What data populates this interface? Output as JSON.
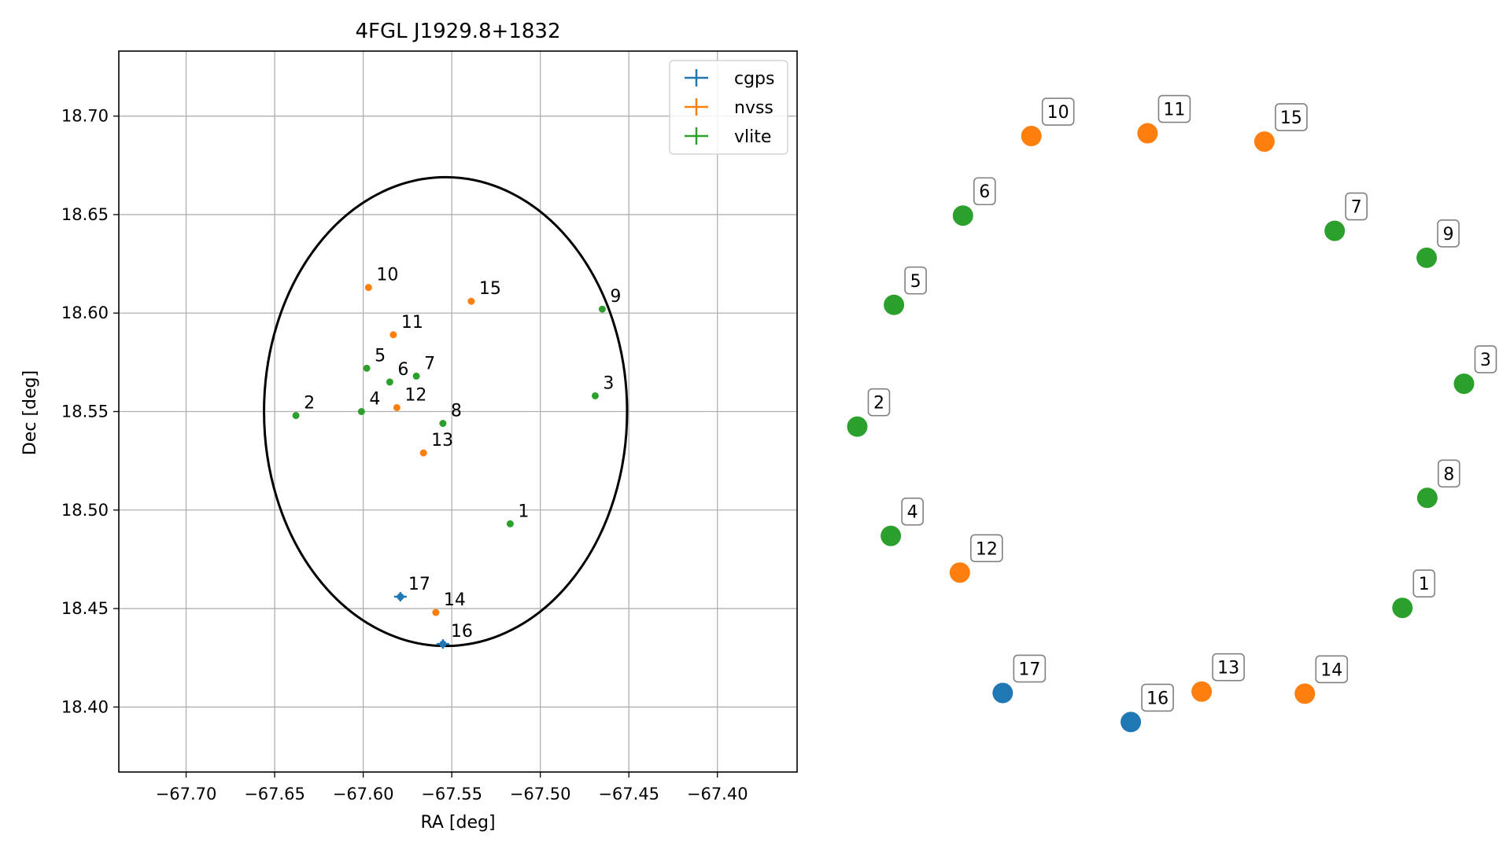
{
  "chart_data": [
    {
      "type": "scatter",
      "title": "4FGL J1929.8+1832",
      "xlabel": "RA [deg]",
      "ylabel": "Dec [deg]",
      "xlim": [
        -67.738,
        -67.355
      ],
      "ylim": [
        18.367,
        18.733
      ],
      "xticks": [
        -67.7,
        -67.65,
        -67.6,
        -67.55,
        -67.5,
        -67.45,
        -67.4
      ],
      "xtick_labels": [
        "−67.70",
        "−67.65",
        "−67.60",
        "−67.55",
        "−67.50",
        "−67.45",
        "−67.40"
      ],
      "yticks": [
        18.4,
        18.45,
        18.5,
        18.55,
        18.6,
        18.65,
        18.7
      ],
      "ytick_labels": [
        "18.40",
        "18.45",
        "18.50",
        "18.55",
        "18.60",
        "18.65",
        "18.70"
      ],
      "grid": true,
      "legend": {
        "placement": "top-right",
        "entries": [
          {
            "name": "cgps",
            "color": "#1f77b4"
          },
          {
            "name": "nvss",
            "color": "#ff7f0e"
          },
          {
            "name": "vlite",
            "color": "#2ca02c"
          }
        ]
      },
      "ellipse": {
        "center": [
          -67.5535,
          18.55
        ],
        "ra_semi_axis": 0.1025,
        "dec_semi_axis": 0.119,
        "color": "#000000"
      },
      "series": [
        {
          "name": "cgps",
          "color": "#1f77b4",
          "points": [
            {
              "label": "16",
              "x": -67.555,
              "y": 18.432
            },
            {
              "label": "17",
              "x": -67.579,
              "y": 18.456
            }
          ]
        },
        {
          "name": "nvss",
          "color": "#ff7f0e",
          "points": [
            {
              "label": "10",
              "x": -67.597,
              "y": 18.613
            },
            {
              "label": "11",
              "x": -67.583,
              "y": 18.589
            },
            {
              "label": "12",
              "x": -67.581,
              "y": 18.552
            },
            {
              "label": "13",
              "x": -67.566,
              "y": 18.529
            },
            {
              "label": "14",
              "x": -67.559,
              "y": 18.448
            },
            {
              "label": "15",
              "x": -67.539,
              "y": 18.606
            }
          ]
        },
        {
          "name": "vlite",
          "color": "#2ca02c",
          "points": [
            {
              "label": "1",
              "x": -67.517,
              "y": 18.493
            },
            {
              "label": "2",
              "x": -67.638,
              "y": 18.548
            },
            {
              "label": "3",
              "x": -67.469,
              "y": 18.558
            },
            {
              "label": "4",
              "x": -67.601,
              "y": 18.55
            },
            {
              "label": "5",
              "x": -67.598,
              "y": 18.572
            },
            {
              "label": "6",
              "x": -67.585,
              "y": 18.565
            },
            {
              "label": "7",
              "x": -67.57,
              "y": 18.568
            },
            {
              "label": "8",
              "x": -67.555,
              "y": 18.544
            },
            {
              "label": "9",
              "x": -67.465,
              "y": 18.602
            }
          ]
        }
      ]
    },
    {
      "type": "scatter",
      "title": "",
      "axes_visible": false,
      "xlim": [
        0,
        1
      ],
      "ylim": [
        0,
        1
      ],
      "points": [
        {
          "label": "1",
          "x": 0.889,
          "y": 0.235,
          "color": "#2ca02c"
        },
        {
          "label": "2",
          "x": 0.012,
          "y": 0.497,
          "color": "#2ca02c"
        },
        {
          "label": "3",
          "x": 0.988,
          "y": 0.559,
          "color": "#2ca02c"
        },
        {
          "label": "4",
          "x": 0.066,
          "y": 0.339,
          "color": "#2ca02c"
        },
        {
          "label": "5",
          "x": 0.071,
          "y": 0.673,
          "color": "#2ca02c"
        },
        {
          "label": "6",
          "x": 0.182,
          "y": 0.802,
          "color": "#2ca02c"
        },
        {
          "label": "7",
          "x": 0.78,
          "y": 0.78,
          "color": "#2ca02c"
        },
        {
          "label": "8",
          "x": 0.929,
          "y": 0.394,
          "color": "#2ca02c"
        },
        {
          "label": "9",
          "x": 0.928,
          "y": 0.741,
          "color": "#2ca02c"
        },
        {
          "label": "10",
          "x": 0.292,
          "y": 0.917,
          "color": "#ff7f0e"
        },
        {
          "label": "11",
          "x": 0.479,
          "y": 0.921,
          "color": "#ff7f0e"
        },
        {
          "label": "12",
          "x": 0.177,
          "y": 0.286,
          "color": "#ff7f0e"
        },
        {
          "label": "13",
          "x": 0.566,
          "y": 0.114,
          "color": "#ff7f0e"
        },
        {
          "label": "14",
          "x": 0.732,
          "y": 0.111,
          "color": "#ff7f0e"
        },
        {
          "label": "15",
          "x": 0.667,
          "y": 0.909,
          "color": "#ff7f0e"
        },
        {
          "label": "16",
          "x": 0.452,
          "y": 0.07,
          "color": "#1f77b4"
        },
        {
          "label": "17",
          "x": 0.246,
          "y": 0.112,
          "color": "#1f77b4"
        }
      ]
    }
  ]
}
